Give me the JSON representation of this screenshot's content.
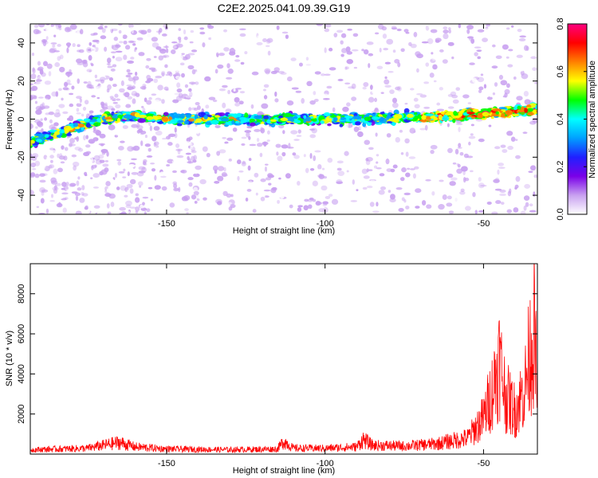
{
  "title": "C2E2.2025.041.09.39.G19",
  "chart_data": [
    {
      "type": "heatmap",
      "xlabel": "Height of straight line (km)",
      "ylabel": "Frequency (Hz)",
      "xlim": [
        -193,
        -33
      ],
      "ylim": [
        -50,
        50
      ],
      "x_ticks": [
        -150,
        -100,
        -50
      ],
      "y_ticks": [
        -40,
        -20,
        0,
        20,
        40
      ],
      "colorbar": {
        "label": "Normalized spectral amplitude",
        "range": [
          0,
          0.8
        ],
        "ticks": [
          0,
          0.2,
          0.4,
          0.6,
          0.8
        ],
        "colors": [
          "#ffffff",
          "#c8a0f0",
          "#7a00e8",
          "#2020ff",
          "#00a0ff",
          "#00ffff",
          "#00ff00",
          "#ffff00",
          "#ff8000",
          "#ff0000",
          "#ff0080"
        ]
      },
      "ridge": {
        "x": [
          -193,
          -180,
          -170,
          -160,
          -150,
          -120,
          -100,
          -80,
          -60,
          -50,
          -33
        ],
        "freq": [
          -12,
          -5,
          0,
          2,
          0,
          0,
          0,
          0.5,
          1.5,
          3,
          5
        ]
      }
    },
    {
      "type": "line",
      "xlabel": "Height of straight line (km)",
      "ylabel": "SNR (10 * v/v)",
      "xlim": [
        -193,
        -33
      ],
      "ylim": [
        0,
        9500
      ],
      "x_ticks": [
        -150,
        -100,
        -50
      ],
      "y_ticks": [
        2000,
        4000,
        6000,
        8000
      ],
      "series_color": "#ff0000",
      "profile": {
        "x": [
          -193,
          -175,
          -165,
          -160,
          -150,
          -130,
          -115,
          -113,
          -110,
          -100,
          -90,
          -88,
          -85,
          -75,
          -65,
          -55,
          -50,
          -47,
          -45,
          -43,
          -40,
          -37,
          -35,
          -34,
          -33
        ],
        "y": [
          300,
          400,
          800,
          500,
          350,
          300,
          350,
          900,
          400,
          400,
          500,
          1000,
          600,
          550,
          700,
          1100,
          2500,
          4500,
          6500,
          4000,
          3000,
          4500,
          7500,
          8500,
          4000
        ]
      }
    }
  ]
}
